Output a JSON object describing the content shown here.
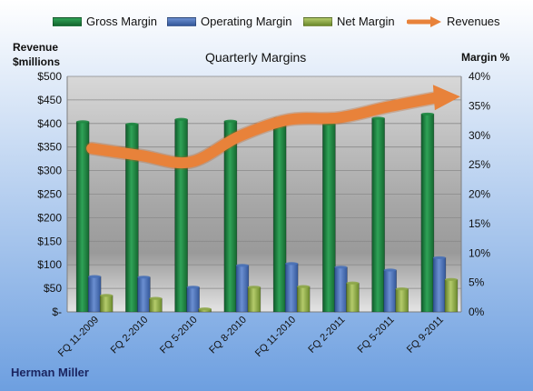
{
  "chart_data": {
    "type": "bar",
    "title": "Quarterly Margins",
    "company": "Herman Miller",
    "categories": [
      "FQ 11-2009",
      "FQ 2-2010",
      "FQ 5-2010",
      "FQ 8-2010",
      "FQ 11-2010",
      "FQ 2-2011",
      "FQ 5-2011",
      "FQ 9-2011"
    ],
    "series": [
      {
        "name": "Gross Margin",
        "axis": "right",
        "values": [
          32.3,
          31.9,
          32.7,
          32.4,
          32.9,
          31.9,
          32.9,
          33.6
        ],
        "color": "#1f8a42"
      },
      {
        "name": "Operating Margin",
        "axis": "right",
        "values": [
          6.0,
          5.9,
          4.2,
          7.9,
          8.2,
          7.6,
          7.1,
          9.2
        ],
        "color": "#4a72b8"
      },
      {
        "name": "Net Margin",
        "axis": "right",
        "values": [
          2.8,
          2.3,
          0.5,
          4.2,
          4.3,
          4.9,
          3.9,
          5.5
        ],
        "color": "#8fa84a"
      },
      {
        "name": "Revenues",
        "axis": "left",
        "type": "line",
        "values": [
          347,
          332,
          318,
          373,
          408,
          412,
          435,
          455
        ],
        "color": "#e8823a"
      }
    ],
    "y_left": {
      "label_line1": "Revenue",
      "label_line2": "$millions",
      "ylim": [
        0,
        500
      ],
      "ticks": [
        "$-",
        "$50",
        "$100",
        "$150",
        "$200",
        "$250",
        "$300",
        "$350",
        "$400",
        "$450",
        "$500"
      ]
    },
    "y_right": {
      "label": "Margin %",
      "ylim": [
        0,
        40
      ],
      "ticks": [
        "0%",
        "5%",
        "10%",
        "15%",
        "20%",
        "25%",
        "30%",
        "35%",
        "40%"
      ]
    },
    "grid": true,
    "legend_position": "top"
  }
}
